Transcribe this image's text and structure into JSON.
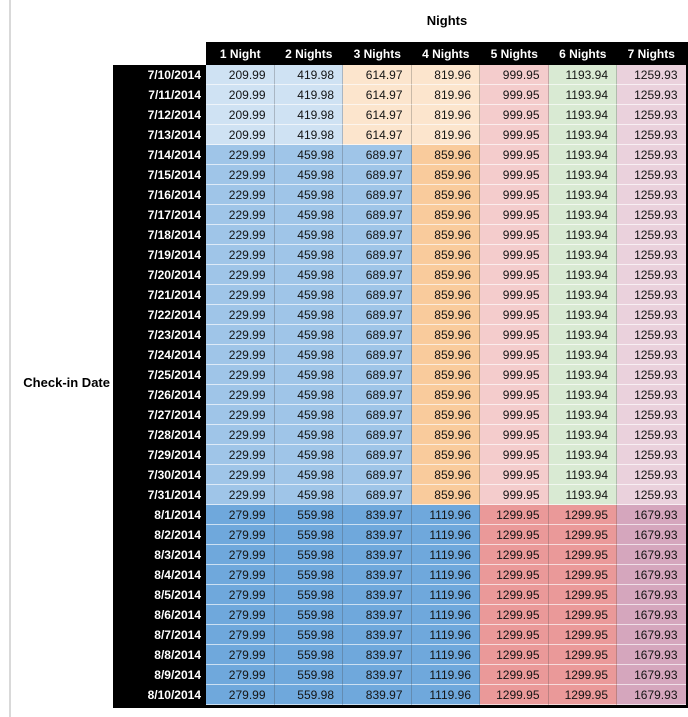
{
  "title": "Nights",
  "axis_label": "Check-in Date",
  "columns": [
    "1 Night",
    "2 Nights",
    "3 Nights",
    "4 Nights",
    "5 Nights",
    "6 Nights",
    "7 Nights"
  ],
  "band_colors": {
    "A": [
      "#CFE2F3",
      "#CFE2F3",
      "#FCE5CD",
      "#FCE5CD",
      "#F4CCCC",
      "#D9EAD3",
      "#EAD1DC"
    ],
    "B": [
      "#9FC5E8",
      "#9FC5E8",
      "#9FC5E8",
      "#F9CB9C",
      "#F4CCCC",
      "#D9EAD3",
      "#EAD1DC"
    ],
    "C": [
      "#6FA8DC",
      "#6FA8DC",
      "#6FA8DC",
      "#6FA8DC",
      "#EA9999",
      "#EA9999",
      "#D5A6BD"
    ]
  },
  "rows": [
    {
      "date": "7/10/2014",
      "band": "A",
      "values": [
        "209.99",
        "419.98",
        "614.97",
        "819.96",
        "999.95",
        "1193.94",
        "1259.93"
      ]
    },
    {
      "date": "7/11/2014",
      "band": "A",
      "values": [
        "209.99",
        "419.98",
        "614.97",
        "819.96",
        "999.95",
        "1193.94",
        "1259.93"
      ]
    },
    {
      "date": "7/12/2014",
      "band": "A",
      "values": [
        "209.99",
        "419.98",
        "614.97",
        "819.96",
        "999.95",
        "1193.94",
        "1259.93"
      ]
    },
    {
      "date": "7/13/2014",
      "band": "A",
      "values": [
        "209.99",
        "419.98",
        "614.97",
        "819.96",
        "999.95",
        "1193.94",
        "1259.93"
      ]
    },
    {
      "date": "7/14/2014",
      "band": "B",
      "values": [
        "229.99",
        "459.98",
        "689.97",
        "859.96",
        "999.95",
        "1193.94",
        "1259.93"
      ]
    },
    {
      "date": "7/15/2014",
      "band": "B",
      "values": [
        "229.99",
        "459.98",
        "689.97",
        "859.96",
        "999.95",
        "1193.94",
        "1259.93"
      ]
    },
    {
      "date": "7/16/2014",
      "band": "B",
      "values": [
        "229.99",
        "459.98",
        "689.97",
        "859.96",
        "999.95",
        "1193.94",
        "1259.93"
      ]
    },
    {
      "date": "7/17/2014",
      "band": "B",
      "values": [
        "229.99",
        "459.98",
        "689.97",
        "859.96",
        "999.95",
        "1193.94",
        "1259.93"
      ]
    },
    {
      "date": "7/18/2014",
      "band": "B",
      "values": [
        "229.99",
        "459.98",
        "689.97",
        "859.96",
        "999.95",
        "1193.94",
        "1259.93"
      ]
    },
    {
      "date": "7/19/2014",
      "band": "B",
      "values": [
        "229.99",
        "459.98",
        "689.97",
        "859.96",
        "999.95",
        "1193.94",
        "1259.93"
      ]
    },
    {
      "date": "7/20/2014",
      "band": "B",
      "values": [
        "229.99",
        "459.98",
        "689.97",
        "859.96",
        "999.95",
        "1193.94",
        "1259.93"
      ]
    },
    {
      "date": "7/21/2014",
      "band": "B",
      "values": [
        "229.99",
        "459.98",
        "689.97",
        "859.96",
        "999.95",
        "1193.94",
        "1259.93"
      ]
    },
    {
      "date": "7/22/2014",
      "band": "B",
      "values": [
        "229.99",
        "459.98",
        "689.97",
        "859.96",
        "999.95",
        "1193.94",
        "1259.93"
      ]
    },
    {
      "date": "7/23/2014",
      "band": "B",
      "values": [
        "229.99",
        "459.98",
        "689.97",
        "859.96",
        "999.95",
        "1193.94",
        "1259.93"
      ]
    },
    {
      "date": "7/24/2014",
      "band": "B",
      "values": [
        "229.99",
        "459.98",
        "689.97",
        "859.96",
        "999.95",
        "1193.94",
        "1259.93"
      ]
    },
    {
      "date": "7/25/2014",
      "band": "B",
      "values": [
        "229.99",
        "459.98",
        "689.97",
        "859.96",
        "999.95",
        "1193.94",
        "1259.93"
      ]
    },
    {
      "date": "7/26/2014",
      "band": "B",
      "values": [
        "229.99",
        "459.98",
        "689.97",
        "859.96",
        "999.95",
        "1193.94",
        "1259.93"
      ]
    },
    {
      "date": "7/27/2014",
      "band": "B",
      "values": [
        "229.99",
        "459.98",
        "689.97",
        "859.96",
        "999.95",
        "1193.94",
        "1259.93"
      ]
    },
    {
      "date": "7/28/2014",
      "band": "B",
      "values": [
        "229.99",
        "459.98",
        "689.97",
        "859.96",
        "999.95",
        "1193.94",
        "1259.93"
      ]
    },
    {
      "date": "7/29/2014",
      "band": "B",
      "values": [
        "229.99",
        "459.98",
        "689.97",
        "859.96",
        "999.95",
        "1193.94",
        "1259.93"
      ]
    },
    {
      "date": "7/30/2014",
      "band": "B",
      "values": [
        "229.99",
        "459.98",
        "689.97",
        "859.96",
        "999.95",
        "1193.94",
        "1259.93"
      ]
    },
    {
      "date": "7/31/2014",
      "band": "B",
      "values": [
        "229.99",
        "459.98",
        "689.97",
        "859.96",
        "999.95",
        "1193.94",
        "1259.93"
      ]
    },
    {
      "date": "8/1/2014",
      "band": "C",
      "values": [
        "279.99",
        "559.98",
        "839.97",
        "1119.96",
        "1299.95",
        "1299.95",
        "1679.93"
      ]
    },
    {
      "date": "8/2/2014",
      "band": "C",
      "values": [
        "279.99",
        "559.98",
        "839.97",
        "1119.96",
        "1299.95",
        "1299.95",
        "1679.93"
      ]
    },
    {
      "date": "8/3/2014",
      "band": "C",
      "values": [
        "279.99",
        "559.98",
        "839.97",
        "1119.96",
        "1299.95",
        "1299.95",
        "1679.93"
      ]
    },
    {
      "date": "8/4/2014",
      "band": "C",
      "values": [
        "279.99",
        "559.98",
        "839.97",
        "1119.96",
        "1299.95",
        "1299.95",
        "1679.93"
      ]
    },
    {
      "date": "8/5/2014",
      "band": "C",
      "values": [
        "279.99",
        "559.98",
        "839.97",
        "1119.96",
        "1299.95",
        "1299.95",
        "1679.93"
      ]
    },
    {
      "date": "8/6/2014",
      "band": "C",
      "values": [
        "279.99",
        "559.98",
        "839.97",
        "1119.96",
        "1299.95",
        "1299.95",
        "1679.93"
      ]
    },
    {
      "date": "8/7/2014",
      "band": "C",
      "values": [
        "279.99",
        "559.98",
        "839.97",
        "1119.96",
        "1299.95",
        "1299.95",
        "1679.93"
      ]
    },
    {
      "date": "8/8/2014",
      "band": "C",
      "values": [
        "279.99",
        "559.98",
        "839.97",
        "1119.96",
        "1299.95",
        "1299.95",
        "1679.93"
      ]
    },
    {
      "date": "8/9/2014",
      "band": "C",
      "values": [
        "279.99",
        "559.98",
        "839.97",
        "1119.96",
        "1299.95",
        "1299.95",
        "1679.93"
      ]
    },
    {
      "date": "8/10/2014",
      "band": "C",
      "values": [
        "279.99",
        "559.98",
        "839.97",
        "1119.96",
        "1299.95",
        "1299.95",
        "1679.93"
      ]
    }
  ],
  "colors": {
    "header_bg": "#000000",
    "header_text": "#FFFFFF",
    "value_text": "#141414",
    "window_edge": "#D9D9D9"
  }
}
